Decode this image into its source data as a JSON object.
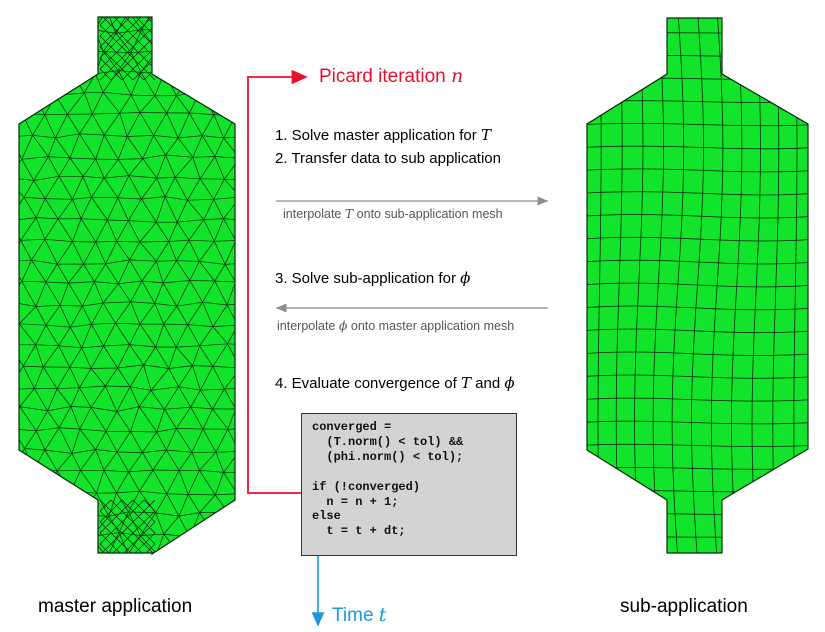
{
  "left_label": "master application",
  "right_label": "sub-application",
  "loop_label": {
    "text": "Picard iteration ",
    "var": "n"
  },
  "time_label": {
    "text": "Time ",
    "var": "t"
  },
  "steps": {
    "s1": {
      "text": "1.  Solve master application for ",
      "var": "T",
      "after": ""
    },
    "s2": {
      "text": "2.  Transfer data to sub application",
      "var": "",
      "after": ""
    },
    "s3": {
      "text": "3.  Solve sub-application for ",
      "var": "ϕ",
      "after": ""
    },
    "s4": {
      "text": "4.  Evaluate convergence of ",
      "var": "T",
      "mid": " and ",
      "var2": "ϕ"
    }
  },
  "transfer_forward": {
    "pre": "interpolate ",
    "var": "T",
    "post": " onto sub-application mesh"
  },
  "transfer_back": {
    "pre": "interpolate ",
    "var": "ϕ",
    "post": " onto master application mesh"
  },
  "code": {
    "line1": "converged =",
    "line2": "  (T.norm() < tol) &&",
    "line3": "  (phi.norm() < tol);",
    "line4": "",
    "line5": "if (!converged)",
    "line6": "  n = n + 1;",
    "line7": "else",
    "line8": "  t = t + dt;"
  },
  "colors": {
    "mesh_fill": "#12e42c",
    "mesh_line": "#0b2a0b",
    "loop_arrow": "#e8112d",
    "time_arrow": "#1a9ad9",
    "transfer_arrow": "#8c8c8c",
    "code_bg": "#d3d3d3"
  }
}
